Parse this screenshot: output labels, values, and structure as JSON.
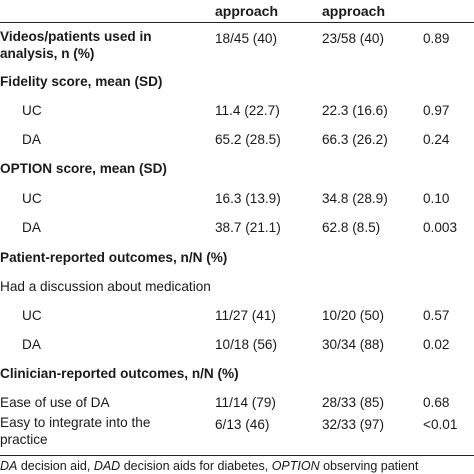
{
  "header": {
    "col2": "approach",
    "col3": "approach"
  },
  "rows": [
    {
      "label": "Videos/patients used in analysis, n (%)",
      "v1": "18/45 (40)",
      "v2": "23/58 (40)",
      "p": "0.89"
    },
    {
      "label": "Fidelity score, mean (SD)"
    },
    {
      "label": "UC",
      "v1": "11.4 (22.7)",
      "v2": "22.3 (16.6)",
      "p": "0.97"
    },
    {
      "label": "DA",
      "v1": "65.2 (28.5)",
      "v2": "66.3 (26.2)",
      "p": "0.24"
    },
    {
      "label": "OPTION score, mean (SD)"
    },
    {
      "label": "UC",
      "v1": "16.3 (13.9)",
      "v2": "34.8 (28.9)",
      "p": "0.10"
    },
    {
      "label": "DA",
      "v1": "38.7 (21.1)",
      "v2": "62.8 (8.5)",
      "p": "0.003"
    },
    {
      "label": "Patient-reported outcomes, n/N (%)"
    },
    {
      "label": "Had a discussion about medication"
    },
    {
      "label": "UC",
      "v1": "11/27 (41)",
      "v2": "10/20 (50)",
      "p": "0.57"
    },
    {
      "label": "DA",
      "v1": "10/18 (56)",
      "v2": "30/34 (88)",
      "p": "0.02"
    },
    {
      "label": "Clinician-reported outcomes, n/N (%)"
    },
    {
      "label": "Ease of use of DA",
      "v1": "11/14 (79)",
      "v2": "28/33 (85)",
      "p": "0.68"
    },
    {
      "label": "Easy to integrate into the practice",
      "v1": "6/13 (46)",
      "v2": "32/33 (97)",
      "p": "<0.01"
    }
  ],
  "footnote": {
    "t1": "DA",
    "t2": " decision aid, ",
    "t3": "DAD",
    "t4": " decision aids for diabetes, ",
    "t5": "OPTION",
    "t6": " observing patient"
  }
}
